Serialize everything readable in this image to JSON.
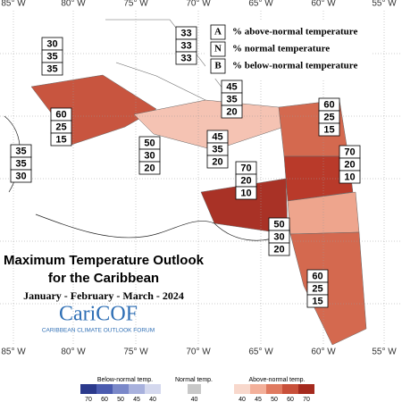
{
  "map": {
    "longitudes": [
      "85° W",
      "80° W",
      "75° W",
      "70° W",
      "65° W",
      "60° W",
      "55° W"
    ],
    "legend": [
      {
        "key": "A",
        "label": "% above-normal temperature"
      },
      {
        "key": "N",
        "label": "% normal temperature"
      },
      {
        "key": "B",
        "label": "% below-normal temperature"
      }
    ],
    "regions": [
      {
        "values": [
          30,
          35,
          35
        ]
      },
      {
        "values": [
          33,
          33,
          33
        ]
      },
      {
        "values": [
          45,
          35,
          20
        ]
      },
      {
        "values": [
          60,
          25,
          15
        ]
      },
      {
        "values": [
          35,
          35,
          30
        ]
      },
      {
        "values": [
          50,
          30,
          20
        ]
      },
      {
        "values": [
          45,
          35,
          20
        ]
      },
      {
        "values": [
          60,
          25,
          15
        ]
      },
      {
        "values": [
          70,
          20,
          10
        ]
      },
      {
        "values": [
          70,
          20,
          10
        ]
      },
      {
        "values": [
          50,
          30,
          20
        ]
      },
      {
        "values": [
          60,
          25,
          15
        ]
      }
    ],
    "title": "Maximum Temperature Outlook",
    "subtitle": "for the Caribbean",
    "period": "January - February - March - 2024",
    "logo": "CariCOF",
    "logo_caption": "CARIBBEAN CLIMATE OUTLOOK FORUM",
    "colorbar": {
      "below": {
        "label": "Below-normal temp.",
        "ticks": [
          70,
          60,
          50,
          45,
          40
        ]
      },
      "normal": {
        "label": "Normal temp.",
        "ticks": [
          40
        ]
      },
      "above": {
        "label": "Above-normal temp.",
        "ticks": [
          40,
          45,
          50,
          60,
          70
        ]
      }
    }
  }
}
